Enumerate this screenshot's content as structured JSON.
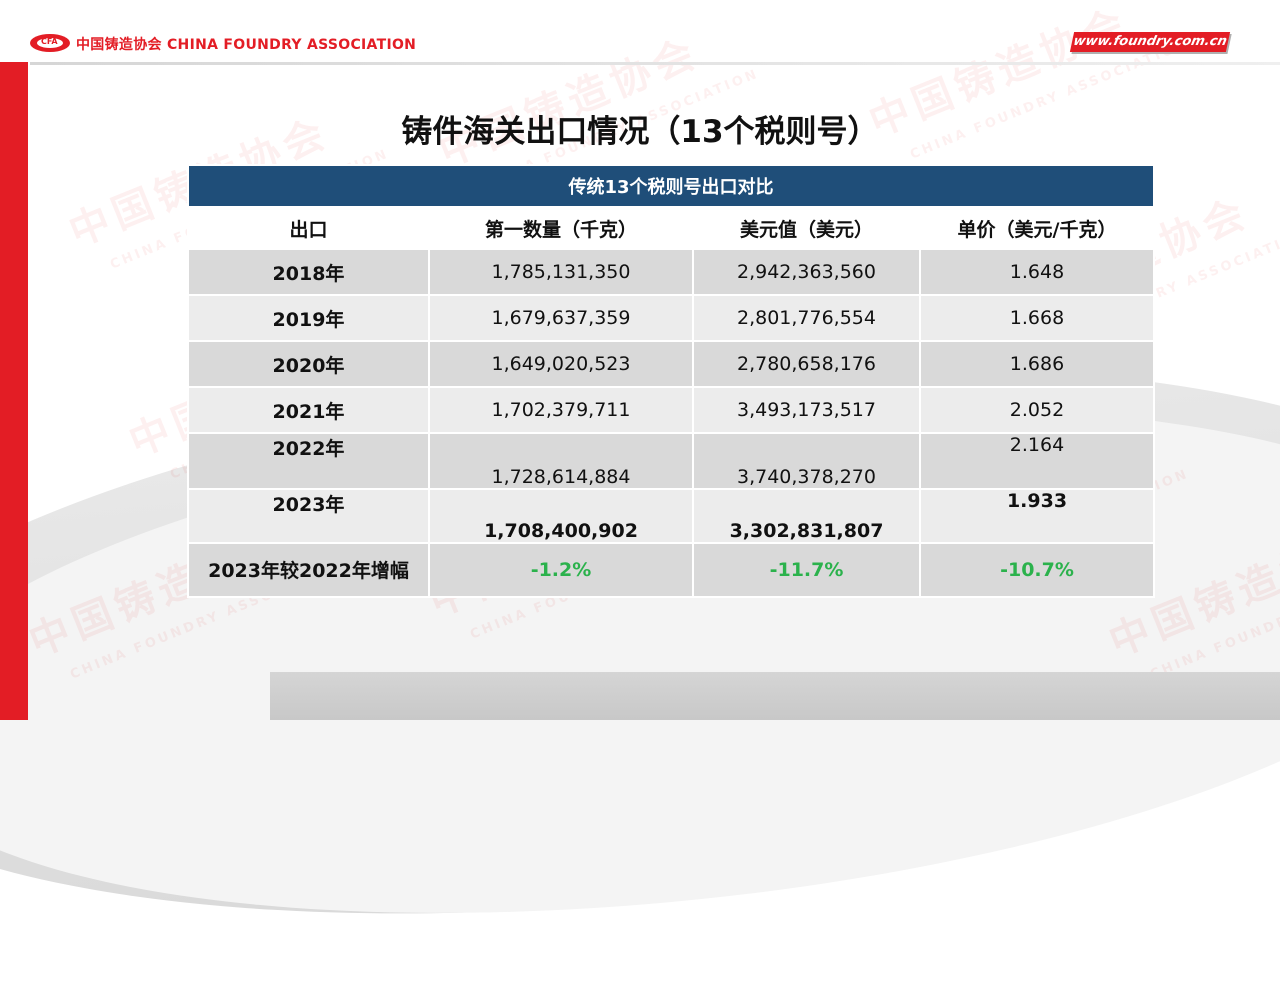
{
  "header": {
    "association": "中国铸造协会 CHINA FOUNDRY ASSOCIATION",
    "logo_text": "CFA",
    "site": "www.foundry.com.cn",
    "brand_color": "#e31d25"
  },
  "watermark": {
    "cn": "中国铸造协会",
    "en": "CHINA FOUNDRY ASSOCIATION"
  },
  "title": "铸件海关出口情况（13个税则号）",
  "table": {
    "caption": "传统13个税则号出口对比",
    "header_color": "#1f4e79",
    "columns": [
      "出口",
      "第一数量（千克）",
      "美元值（美元）",
      "单价（美元/千克）"
    ],
    "rows": [
      {
        "year": "2018年",
        "qty": "1,785,131,350",
        "usd": "2,942,363,560",
        "price": "1.648"
      },
      {
        "year": "2019年",
        "qty": "1,679,637,359",
        "usd": "2,801,776,554",
        "price": "1.668"
      },
      {
        "year": "2020年",
        "qty": "1,649,020,523",
        "usd": "2,780,658,176",
        "price": "1.686"
      },
      {
        "year": "2021年",
        "qty": "1,702,379,711",
        "usd": "3,493,173,517",
        "price": "2.052"
      },
      {
        "year": "2022年",
        "qty": "1,728,614,884",
        "usd": "3,740,378,270",
        "price": "2.164"
      },
      {
        "year": "2023年",
        "qty": "1,708,400,902",
        "usd": "3,302,831,807",
        "price": "1.933"
      }
    ],
    "change": {
      "label": "2023年较2022年增幅",
      "qty": "-1.2%",
      "usd": "-11.7%",
      "price": "-10.7%",
      "color": "#2bb24c"
    }
  }
}
